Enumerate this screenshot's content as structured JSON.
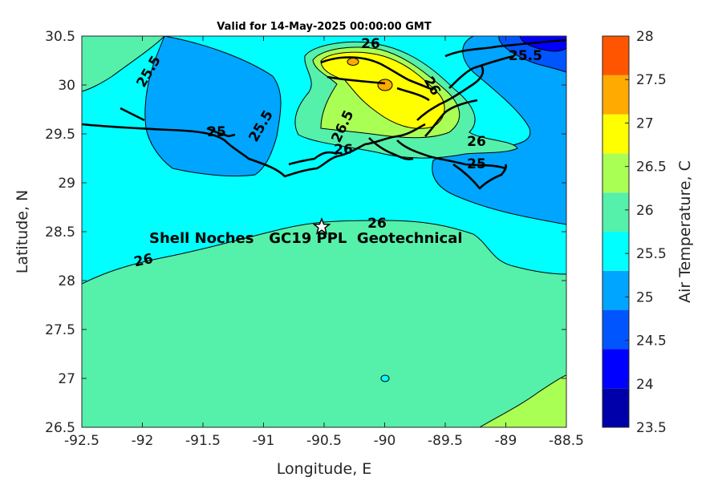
{
  "title": "Valid for 14-May-2025 00:00:00 GMT",
  "xlabel": "Longitude, E",
  "ylabel": "Latitude, N",
  "colorbar_label": "Air Temperature, C",
  "x_ticks": [
    "-92.5",
    "-92",
    "-91.5",
    "-91",
    "-90.5",
    "-90",
    "-89.5",
    "-89",
    "-88.5"
  ],
  "y_ticks": [
    "26.5",
    "27",
    "27.5",
    "28",
    "28.5",
    "29",
    "29.5",
    "30",
    "30.5"
  ],
  "colorbar_ticks": [
    "23.5",
    "24",
    "24.5",
    "25",
    "25.5",
    "26",
    "26.5",
    "27",
    "27.5",
    "28"
  ],
  "colorbar_colors": [
    "#0000aa",
    "#0000ff",
    "#0055ff",
    "#00a5ff",
    "#00ffff",
    "#55f0aa",
    "#aaff55",
    "#ffff00",
    "#ffaa00",
    "#ff5500"
  ],
  "site_label": "Shell Noches   GC19 PPL  Geotechnical",
  "site_marker": "star-icon",
  "contour_labels": [
    "26",
    "25.5",
    "25.5",
    "26",
    "26.5",
    "26",
    "26",
    "25",
    "25",
    "25.5",
    "26",
    "26"
  ],
  "chart_data": {
    "type": "heatmap",
    "title": "Valid for 14-May-2025 00:00:00 GMT",
    "xlabel": "Longitude, E",
    "ylabel": "Latitude, N",
    "xlim": [
      -92.5,
      -88.5
    ],
    "ylim": [
      26.5,
      30.5
    ],
    "clim": [
      23.5,
      28
    ],
    "colorbar_label": "Air Temperature, C",
    "contour_levels": [
      23.5,
      24,
      24.5,
      25,
      25.5,
      26,
      26.5,
      27,
      27.5,
      28
    ],
    "site": {
      "name": "Shell Noches   GC19 PPL  Geotechnical",
      "lon": -90.53,
      "lat": 28.55
    },
    "regions": [
      {
        "range": "26-26.5",
        "area": "offshore south of ~28.4N"
      },
      {
        "range": "25.5-26",
        "area": "nearshore band 28.4N-29.1N"
      },
      {
        "range": "25-25.5",
        "area": "west coast near -91.6, east near -89.4, northeast"
      },
      {
        "range": "26.5-27",
        "area": "around -90.2, 30.0"
      },
      {
        "range": "27-27.5",
        "area": "small cells near -90.25, 30.2 and -90.0, 29.98"
      },
      {
        "range": "24-24.5",
        "area": "northeast corner near -88.8, 30.45"
      }
    ]
  }
}
